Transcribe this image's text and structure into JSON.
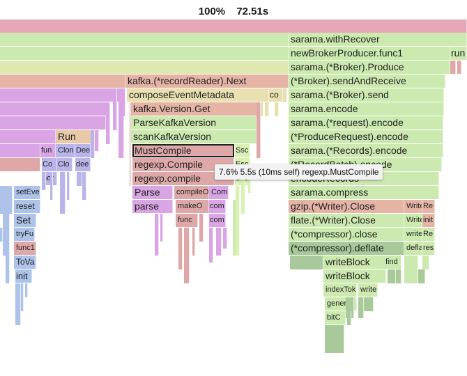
{
  "header": {
    "percent": "100%",
    "total": "72.51s"
  },
  "tooltip": {
    "text": "7.6% 5.5s (10ms self) regexp.MustCompile"
  },
  "colors": {
    "pink": "#e6a8b9",
    "green": "#cce9b0",
    "lime": "#daf0b5",
    "yellowgreen": "#dfe8b0",
    "purple": "#d9a5e5",
    "lavender": "#b9b5ea",
    "blue": "#aec3e9",
    "salmon": "#e5b4a5",
    "rose": "#dfa8a8",
    "tan": "#e8c9a8",
    "darkgreen": "#a9c99a",
    "khaki": "#e8e0b0"
  },
  "frames": [
    {
      "label": "",
      "c": "pink"
    },
    {
      "label": "",
      "c": "green"
    },
    {
      "label": "sarama.withRecover",
      "c": "green"
    },
    {
      "label": "",
      "c": "green"
    },
    {
      "label": "newBrokerProducer.func1",
      "c": "green"
    },
    {
      "label": "run",
      "c": "green"
    },
    {
      "label": "",
      "c": "yellowgreen"
    },
    {
      "label": "sarama.(*Broker).Produce",
      "c": "green"
    },
    {
      "label": "",
      "c": "rose"
    },
    {
      "label": "",
      "c": "rose"
    },
    {
      "label": "",
      "c": "rose"
    },
    {
      "label": "",
      "c": "salmon"
    },
    {
      "label": "kafka.(*recordReader).Next",
      "c": "salmon"
    },
    {
      "label": "(*Broker).sendAndReceive",
      "c": "green"
    },
    {
      "label": "",
      "c": "purple"
    },
    {
      "label": "composeEventMetadata",
      "c": "khaki"
    },
    {
      "label": "co",
      "c": "khaki"
    },
    {
      "label": "sarama.(*Broker).send",
      "c": "green"
    },
    {
      "label": "",
      "c": "purple"
    },
    {
      "label": "kafka.Version.Get",
      "c": "salmon"
    },
    {
      "label": "sarama.encode",
      "c": "green"
    },
    {
      "label": "",
      "c": "purple"
    },
    {
      "label": "ParseKafkaVersion",
      "c": "green"
    },
    {
      "label": "sarama.(*request).encode",
      "c": "green"
    },
    {
      "label": "",
      "c": "purple"
    },
    {
      "label": "Run",
      "c": "tan"
    },
    {
      "label": "scanKafkaVersion",
      "c": "green"
    },
    {
      "label": "(*ProduceRequest).encode",
      "c": "green"
    },
    {
      "label": "",
      "c": "purple"
    },
    {
      "label": "fun",
      "c": "purple"
    },
    {
      "label": "Clon",
      "c": "lavender"
    },
    {
      "label": "Dee",
      "c": "lavender"
    },
    {
      "label": "MustCompile",
      "c": "rose"
    },
    {
      "label": "Ssc",
      "c": "lime"
    },
    {
      "label": "sarama.(*Records).encode",
      "c": "green"
    },
    {
      "label": "",
      "c": "rose"
    },
    {
      "label": "Co",
      "c": "lavender"
    },
    {
      "label": "Clo",
      "c": "lavender"
    },
    {
      "label": "dee",
      "c": "lavender"
    },
    {
      "label": "regexp.Compile",
      "c": "rose"
    },
    {
      "label": "Esc",
      "c": "lime"
    },
    {
      "label": "(*RecordBatch).encode",
      "c": "green"
    },
    {
      "label": "nor",
      "c": "lavender"
    },
    {
      "label": "regexp.compile",
      "c": "rose"
    },
    {
      "label": "dec",
      "c": "lime"
    },
    {
      "label": "encodeRecords",
      "c": "green"
    },
    {
      "label": "setEve",
      "c": "blue"
    },
    {
      "label": "Parse",
      "c": "purple"
    },
    {
      "label": "compileO",
      "c": "rose"
    },
    {
      "label": "Com",
      "c": "purple"
    },
    {
      "label": "sarama.compress",
      "c": "green"
    },
    {
      "label": "reset",
      "c": "blue"
    },
    {
      "label": "parse",
      "c": "purple"
    },
    {
      "label": "makeO",
      "c": "rose"
    },
    {
      "label": "com",
      "c": "purple"
    },
    {
      "label": "gzip.(*Writer).Close",
      "c": "salmon"
    },
    {
      "label": "Write",
      "c": "salmon"
    },
    {
      "label": "Re",
      "c": "salmon"
    },
    {
      "label": "Set",
      "c": "blue"
    },
    {
      "label": "func",
      "c": "rose"
    },
    {
      "label": "com",
      "c": "purple"
    },
    {
      "label": "flate.(*Writer).Close",
      "c": "green"
    },
    {
      "label": "Write",
      "c": "green"
    },
    {
      "label": "init",
      "c": "salmon"
    },
    {
      "label": "tryFu",
      "c": "blue"
    },
    {
      "label": "(*compressor).close",
      "c": "green"
    },
    {
      "label": "write",
      "c": "green"
    },
    {
      "label": "Re",
      "c": "green"
    },
    {
      "label": "func1",
      "c": "rose"
    },
    {
      "label": "(*compressor).deflate",
      "c": "darkgreen"
    },
    {
      "label": "defla",
      "c": "green"
    },
    {
      "label": "res",
      "c": "green"
    },
    {
      "label": "ToVa",
      "c": "blue"
    },
    {
      "label": "writeBlock",
      "c": "green"
    },
    {
      "label": "find",
      "c": "green"
    },
    {
      "label": "init",
      "c": "blue"
    },
    {
      "label": "writeBlock",
      "c": "green"
    },
    {
      "label": "indexTok",
      "c": "green"
    },
    {
      "label": "write",
      "c": "green"
    },
    {
      "label": "generat",
      "c": "green"
    },
    {
      "label": "bitC",
      "c": "green"
    },
    {
      "label": "",
      "c": "blue"
    },
    {
      "label": "",
      "c": "purple"
    },
    {
      "label": "",
      "c": "rose"
    },
    {
      "label": "",
      "c": "darkgreen"
    },
    {
      "label": "",
      "c": "green"
    }
  ]
}
